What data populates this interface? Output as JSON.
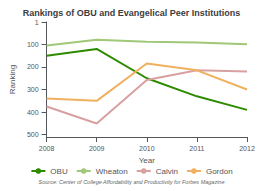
{
  "chart_data": {
    "type": "line",
    "title": "Rankings of OBU and Evangelical Peer Institutions",
    "xlabel": "Year",
    "ylabel": "Ranking",
    "source": "Source: Center of College Affordability and Productivity for Forbes Magazine",
    "x": [
      2008,
      2009,
      2010,
      2011,
      2012
    ],
    "series": [
      {
        "name": "OBU",
        "color": "#2e8b00",
        "line_style": "solid",
        "values": [
          150,
          120,
          250,
          330,
          390
        ]
      },
      {
        "name": "Wheaton",
        "color": "#a0c878",
        "line_style": "solid",
        "values": [
          105,
          80,
          88,
          92,
          100
        ]
      },
      {
        "name": "Calvin",
        "color": "#d8a0a0",
        "line_style": "solid",
        "values": [
          375,
          450,
          258,
          215,
          220
        ]
      },
      {
        "name": "Gordon",
        "color": "#f0b060",
        "line_style": "solid",
        "values": [
          340,
          350,
          185,
          215,
          300
        ]
      }
    ],
    "xlim": [
      2008,
      2012
    ],
    "xticks": [
      2008,
      2009,
      2010,
      2011,
      2012
    ],
    "ylim": [
      510,
      1
    ],
    "yticks": [
      1,
      100,
      200,
      300,
      400,
      500
    ],
    "grid": false,
    "legend": "bottom"
  }
}
